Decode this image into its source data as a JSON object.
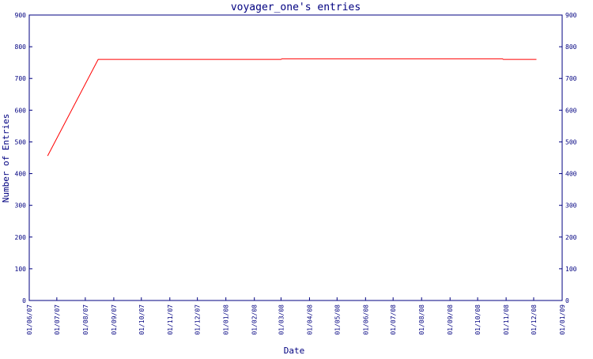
{
  "chart_data": {
    "type": "line",
    "title": "voyager_one's entries",
    "x_label": "Date",
    "y_label": "Number of Entries",
    "x": [
      "2007-06-21",
      "2007-08-15",
      "2008-03-01",
      "2008-03-02",
      "2008-10-28",
      "2008-10-29",
      "2008-12-04"
    ],
    "series": [
      {
        "name": "entries",
        "color": "#ff0000",
        "values": [
          456,
          760,
          760,
          762,
          762,
          760,
          760
        ]
      }
    ],
    "xlim": [
      "2007-06-01",
      "2009-01-01"
    ],
    "xticks": [
      {
        "value": "2007-06-01",
        "label": "01/06/07"
      },
      {
        "value": "2007-07-01",
        "label": "01/07/07"
      },
      {
        "value": "2007-08-01",
        "label": "01/08/07"
      },
      {
        "value": "2007-09-01",
        "label": "01/09/07"
      },
      {
        "value": "2007-10-01",
        "label": "01/10/07"
      },
      {
        "value": "2007-11-01",
        "label": "01/11/07"
      },
      {
        "value": "2007-12-01",
        "label": "01/12/07"
      },
      {
        "value": "2008-01-01",
        "label": "01/01/08"
      },
      {
        "value": "2008-02-01",
        "label": "01/02/08"
      },
      {
        "value": "2008-03-01",
        "label": "01/03/08"
      },
      {
        "value": "2008-04-01",
        "label": "01/04/08"
      },
      {
        "value": "2008-05-01",
        "label": "01/05/08"
      },
      {
        "value": "2008-06-01",
        "label": "01/06/08"
      },
      {
        "value": "2008-07-01",
        "label": "01/07/08"
      },
      {
        "value": "2008-08-01",
        "label": "01/08/08"
      },
      {
        "value": "2008-09-01",
        "label": "01/09/08"
      },
      {
        "value": "2008-10-01",
        "label": "01/10/08"
      },
      {
        "value": "2008-11-01",
        "label": "01/11/08"
      },
      {
        "value": "2008-12-01",
        "label": "01/12/08"
      },
      {
        "value": "2009-01-01",
        "label": "01/01/09"
      }
    ],
    "ylim": [
      0,
      900
    ],
    "yticks": [
      0,
      100,
      200,
      300,
      400,
      500,
      600,
      700,
      800,
      900
    ]
  }
}
